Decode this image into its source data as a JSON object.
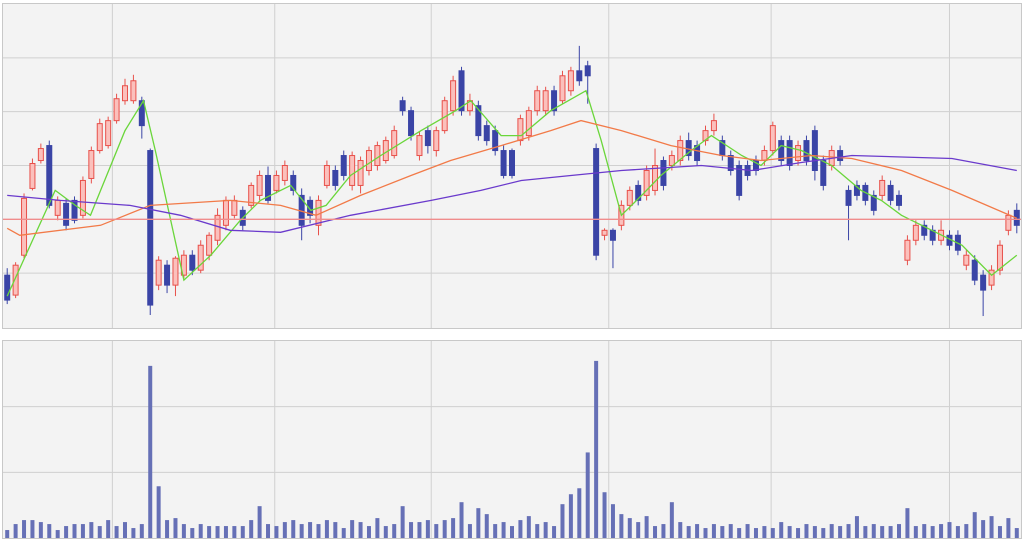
{
  "chart_data": [
    {
      "type": "candlestick",
      "xlim": [
        -0.5,
        120.5
      ],
      "ylim": [
        0,
        325
      ],
      "yticks": [
        55,
        109,
        163,
        217,
        271
      ],
      "xticks": [
        12.5,
        31.8,
        50.4,
        71.5,
        90.8,
        112
      ],
      "grid": true,
      "up_color": "#e8504a",
      "up_fill": "#fbc0bc",
      "down_color": "#3a44a6",
      "reference_line": {
        "value": 109,
        "color": "#f08c8c"
      },
      "open": [
        53,
        33,
        73,
        140,
        168,
        183,
        113,
        125,
        128,
        113,
        150,
        178,
        183,
        208,
        228,
        228,
        228,
        178,
        43,
        63,
        43,
        53,
        73,
        58,
        73,
        88,
        103,
        113,
        118,
        123,
        133,
        153,
        138,
        148,
        153,
        133,
        128,
        103,
        143,
        158,
        173,
        143,
        143,
        158,
        163,
        168,
        173,
        228,
        218,
        173,
        198,
        178,
        198,
        218,
        258,
        218,
        223,
        203,
        198,
        178,
        178,
        188,
        193,
        218,
        218,
        238,
        228,
        238,
        258,
        263,
        180,
        93,
        98,
        103,
        123,
        143,
        133,
        138,
        168,
        163,
        168,
        188,
        183,
        188,
        198,
        188,
        173,
        163,
        163,
        168,
        168,
        178,
        188,
        188,
        168,
        188,
        198,
        168,
        163,
        178,
        138,
        143,
        143,
        133,
        133,
        143,
        133,
        68,
        88,
        103,
        98,
        88,
        93,
        93,
        63,
        68,
        53,
        43,
        58,
        98,
        118
      ],
      "high": [
        60,
        66,
        135,
        170,
        185,
        188,
        132,
        130,
        132,
        152,
        182,
        210,
        212,
        235,
        250,
        254,
        232,
        180,
        72,
        68,
        72,
        78,
        78,
        88,
        96,
        120,
        132,
        133,
        122,
        146,
        158,
        162,
        158,
        168,
        158,
        140,
        132,
        133,
        168,
        163,
        178,
        177,
        172,
        182,
        187,
        192,
        203,
        232,
        222,
        197,
        203,
        202,
        232,
        253,
        262,
        235,
        228,
        208,
        203,
        183,
        180,
        214,
        222,
        243,
        242,
        243,
        258,
        262,
        283,
        268,
        185,
        100,
        100,
        128,
        142,
        148,
        163,
        180,
        172,
        178,
        193,
        196,
        188,
        203,
        215,
        193,
        178,
        168,
        168,
        173,
        183,
        207,
        193,
        193,
        188,
        193,
        203,
        173,
        183,
        183,
        143,
        148,
        146,
        138,
        153,
        148,
        138,
        93,
        108,
        108,
        103,
        108,
        98,
        98,
        78,
        73,
        58,
        63,
        88,
        118,
        125
      ],
      "low": [
        24,
        30,
        70,
        138,
        165,
        120,
        108,
        98,
        105,
        110,
        145,
        175,
        180,
        205,
        224,
        225,
        190,
        13,
        38,
        35,
        32,
        50,
        53,
        55,
        68,
        83,
        98,
        110,
        98,
        120,
        128,
        125,
        135,
        143,
        133,
        88,
        105,
        93,
        140,
        138,
        148,
        138,
        135,
        153,
        158,
        165,
        170,
        213,
        188,
        168,
        175,
        172,
        195,
        213,
        213,
        213,
        188,
        183,
        173,
        150,
        150,
        183,
        188,
        213,
        213,
        213,
        225,
        233,
        243,
        225,
        68,
        88,
        60,
        98,
        118,
        123,
        128,
        133,
        138,
        158,
        163,
        168,
        163,
        183,
        193,
        168,
        153,
        128,
        148,
        153,
        163,
        173,
        163,
        158,
        163,
        163,
        148,
        138,
        158,
        163,
        88,
        128,
        123,
        113,
        128,
        123,
        118,
        63,
        83,
        88,
        83,
        83,
        78,
        73,
        58,
        43,
        12,
        38,
        53,
        93,
        95
      ],
      "close": [
        28,
        63,
        130,
        165,
        180,
        123,
        128,
        103,
        108,
        148,
        178,
        205,
        208,
        230,
        243,
        248,
        203,
        23,
        68,
        43,
        70,
        73,
        58,
        83,
        93,
        113,
        128,
        128,
        103,
        143,
        153,
        128,
        153,
        163,
        138,
        103,
        113,
        128,
        163,
        143,
        153,
        173,
        168,
        178,
        183,
        188,
        198,
        218,
        193,
        193,
        183,
        198,
        228,
        248,
        218,
        228,
        193,
        188,
        178,
        153,
        153,
        210,
        218,
        238,
        238,
        218,
        253,
        258,
        248,
        253,
        73,
        98,
        88,
        123,
        138,
        128,
        158,
        163,
        143,
        173,
        188,
        173,
        168,
        198,
        208,
        173,
        158,
        133,
        153,
        158,
        178,
        203,
        168,
        163,
        183,
        168,
        158,
        143,
        178,
        168,
        123,
        133,
        128,
        118,
        148,
        128,
        123,
        88,
        103,
        93,
        88,
        98,
        83,
        78,
        73,
        48,
        38,
        58,
        83,
        113,
        103
      ],
      "lines": [
        {
          "color": "#6ad63a",
          "x": [
            0,
            5.7,
            8.1,
            9.9,
            11.1,
            14,
            16.2,
            17.6,
            21,
            24.2,
            27.7,
            30.1,
            33.7,
            36.1,
            37.9,
            40.8,
            44.4,
            49.2,
            53.3,
            55.1,
            58.7,
            61.1,
            64.6,
            68.8,
            70.6,
            73,
            75.4,
            77.7,
            81.3,
            83.7,
            87.3,
            89.6,
            92,
            94.4,
            98,
            101.5,
            103.9,
            106.3,
            109.9,
            113.5,
            117,
            120
          ],
          "values": [
            32,
            138,
            123,
            113,
            138,
            198,
            228,
            178,
            48,
            73,
            108,
            128,
            143,
            118,
            123,
            153,
            173,
            198,
            218,
            228,
            193,
            193,
            218,
            238,
            188,
            113,
            133,
            153,
            178,
            193,
            173,
            163,
            183,
            178,
            163,
            138,
            128,
            113,
            98,
            83,
            53,
            73
          ]
        },
        {
          "color": "#f27a48",
          "x": [
            0,
            1.5,
            11.1,
            17,
            26.5,
            32.5,
            36.7,
            42,
            48,
            52.7,
            58.7,
            64.6,
            68.2,
            73,
            78.9,
            84.9,
            89.6,
            95.6,
            100.4,
            106.3,
            112.3,
            120
          ],
          "values": [
            100,
            93,
            103,
            123,
            128,
            123,
            113,
            133,
            153,
            168,
            183,
            198,
            208,
            198,
            183,
            173,
            168,
            173,
            170,
            158,
            138,
            110
          ]
        },
        {
          "color": "#6a3acc",
          "x": [
            0,
            6.3,
            14.6,
            20.6,
            26.5,
            32.5,
            40.8,
            50.4,
            56.3,
            61.1,
            67,
            73,
            82.5,
            88.5,
            94.4,
            100.4,
            112.3,
            120
          ],
          "values": [
            133,
            128,
            123,
            113,
            98,
            96,
            113,
            128,
            138,
            148,
            153,
            158,
            163,
            158,
            166,
            173,
            170,
            158
          ]
        }
      ]
    },
    {
      "type": "bar",
      "xlim": [
        -0.5,
        120.5
      ],
      "ylim": [
        0,
        198
      ],
      "yticks": [
        66,
        132
      ],
      "xticks": [
        12.5,
        31.8,
        50.4,
        71.5,
        90.8,
        112
      ],
      "grid": true,
      "color": "#6670b6",
      "values": [
        8,
        14,
        18,
        18,
        16,
        14,
        8,
        12,
        14,
        14,
        16,
        12,
        18,
        12,
        16,
        10,
        14,
        173,
        52,
        18,
        20,
        14,
        10,
        14,
        12,
        12,
        12,
        12,
        12,
        18,
        32,
        14,
        12,
        16,
        18,
        14,
        16,
        14,
        18,
        16,
        10,
        18,
        16,
        12,
        20,
        12,
        14,
        32,
        16,
        16,
        18,
        14,
        18,
        20,
        36,
        14,
        30,
        24,
        14,
        16,
        12,
        18,
        22,
        14,
        16,
        12,
        34,
        44,
        50,
        86,
        178,
        46,
        34,
        24,
        20,
        16,
        22,
        12,
        14,
        36,
        16,
        12,
        14,
        10,
        14,
        12,
        14,
        10,
        14,
        10,
        12,
        10,
        16,
        12,
        10,
        14,
        12,
        10,
        14,
        12,
        14,
        22,
        12,
        14,
        12,
        12,
        14,
        30,
        12,
        14,
        12,
        14,
        16,
        12,
        14,
        26,
        18,
        22,
        12,
        20,
        10
      ]
    }
  ]
}
